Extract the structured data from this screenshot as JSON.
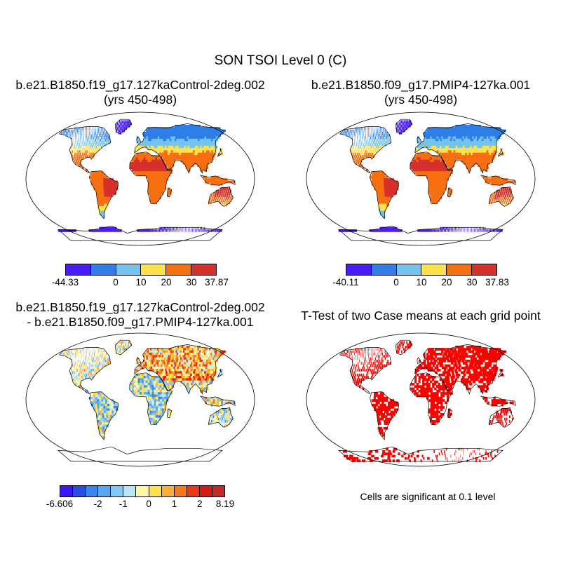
{
  "main_title": "SON TSOI Level 0 (C)",
  "panels": {
    "top_left": {
      "title_line1": "b.e21.B1850.f19_g17.127kaControl-2deg.002",
      "title_line2": "(yrs 450-498)",
      "colorbar": {
        "colors": [
          "#4a1cf7",
          "#2f7ee8",
          "#74c3ec",
          "#fde24a",
          "#f66f10",
          "#d6302c"
        ],
        "tick_labels": [
          "-44.33",
          "0",
          "10",
          "20",
          "30",
          "37.87"
        ]
      }
    },
    "top_right": {
      "title_line1": "b.e21.B1850.f09_g17.PMIP4-127ka.001",
      "title_line2": "(yrs 450-498)",
      "colorbar": {
        "colors": [
          "#4a1cf7",
          "#2f7ee8",
          "#74c3ec",
          "#fde24a",
          "#f66f10",
          "#d6302c"
        ],
        "tick_labels": [
          "-40.11",
          "0",
          "10",
          "20",
          "30",
          "37.83"
        ]
      }
    },
    "bottom_left": {
      "title_line1": "b.e21.B1850.f19_g17.127kaControl-2deg.002",
      "title_line2": "- b.e21.B1850.f09_g17.PMIP4-127ka.001",
      "colorbar": {
        "colors": [
          "#3c16f5",
          "#2a4ce0",
          "#3b86ec",
          "#58a8f0",
          "#86c8f4",
          "#bde3f6",
          "#fff7a6",
          "#fde34a",
          "#fbb03a",
          "#f6781e",
          "#ea3a14",
          "#d61a12",
          "#c2282a"
        ],
        "tick_labels": [
          "-6.606",
          "-2",
          "-1",
          "0",
          "1",
          "2",
          "8.19"
        ]
      }
    },
    "bottom_right": {
      "title_line1": "T-Test of two Case means at each grid point",
      "note": "Cells are significant at 0.1 level",
      "sig_color": "#ff0000"
    }
  }
}
